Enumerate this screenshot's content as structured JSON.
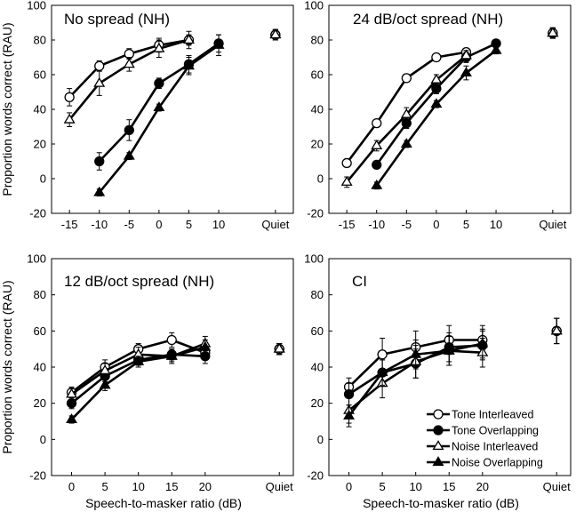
{
  "legend": [
    {
      "label": "Tone Interleaved",
      "marker": "circle",
      "fill": "open"
    },
    {
      "label": "Tone Overlapping",
      "marker": "circle",
      "fill": "filled"
    },
    {
      "label": "Noise Interleaved",
      "marker": "triangle",
      "fill": "open"
    },
    {
      "label": "Noise Overlapping",
      "marker": "triangle",
      "fill": "filled"
    }
  ],
  "chart_data": [
    {
      "type": "line",
      "title": "No spread (NH)",
      "xlabel": "",
      "ylabel": "Proportion words correct (RAU)",
      "ylim": [
        -20,
        100
      ],
      "yticks": [
        -20,
        0,
        20,
        40,
        60,
        80,
        100
      ],
      "xticks": [
        "-15",
        "-10",
        "-5",
        "0",
        "5",
        "10",
        "Quiet"
      ],
      "x": [
        -15,
        -10,
        -5,
        0,
        5,
        10
      ],
      "series": [
        {
          "name": "Tone Interleaved",
          "values": [
            47,
            65,
            72,
            77,
            80,
            null
          ],
          "err": [
            5,
            3,
            3,
            4,
            3,
            0
          ],
          "quiet": 83,
          "quiet_err": 3
        },
        {
          "name": "Tone Overlapping",
          "values": [
            null,
            10,
            28,
            55,
            66,
            78
          ],
          "err": [
            0,
            5,
            6,
            3,
            5,
            5
          ],
          "quiet": 83,
          "quiet_err": 3
        },
        {
          "name": "Noise Interleaved",
          "values": [
            34,
            55,
            66,
            75,
            80,
            null
          ],
          "err": [
            4,
            7,
            4,
            5,
            5,
            0
          ],
          "quiet": 83,
          "quiet_err": 3
        },
        {
          "name": "Noise Overlapping",
          "values": [
            null,
            -8,
            13,
            41,
            65,
            77
          ],
          "err": [
            0,
            2,
            2,
            2,
            5,
            6
          ],
          "quiet": 83,
          "quiet_err": 3
        }
      ]
    },
    {
      "type": "line",
      "title": "24 dB/oct spread (NH)",
      "xlabel": "",
      "ylabel": "",
      "ylim": [
        -20,
        100
      ],
      "yticks": [
        -20,
        0,
        20,
        40,
        60,
        80,
        100
      ],
      "xticks": [
        "-15",
        "-10",
        "-5",
        "0",
        "5",
        "10",
        "Quiet"
      ],
      "x": [
        -15,
        -10,
        -5,
        0,
        5,
        10
      ],
      "series": [
        {
          "name": "Tone Interleaved",
          "values": [
            9,
            32,
            58,
            70,
            73,
            null
          ],
          "err": [
            2,
            2,
            2,
            2,
            2,
            0
          ],
          "quiet": 84,
          "quiet_err": 3
        },
        {
          "name": "Tone Overlapping",
          "values": [
            null,
            8,
            32,
            52,
            70,
            78
          ],
          "err": [
            0,
            2,
            3,
            3,
            3,
            2
          ],
          "quiet": 84,
          "quiet_err": 3
        },
        {
          "name": "Noise Interleaved",
          "values": [
            -2,
            19,
            37,
            57,
            71,
            null
          ],
          "err": [
            3,
            3,
            4,
            3,
            3,
            0
          ],
          "quiet": 84,
          "quiet_err": 3
        },
        {
          "name": "Noise Overlapping",
          "values": [
            null,
            -4,
            20,
            43,
            61,
            74
          ],
          "err": [
            0,
            2,
            2,
            2,
            4,
            2
          ],
          "quiet": 84,
          "quiet_err": 3
        }
      ]
    },
    {
      "type": "line",
      "title": "12 dB/oct spread (NH)",
      "xlabel": "Speech-to-masker ratio (dB)",
      "ylabel": "Proportion words correct (RAU)",
      "ylim": [
        -20,
        100
      ],
      "yticks": [
        -20,
        0,
        20,
        40,
        60,
        80,
        100
      ],
      "xticks": [
        "0",
        "5",
        "10",
        "15",
        "20",
        "Quiet"
      ],
      "x": [
        0,
        5,
        10,
        15,
        20
      ],
      "series": [
        {
          "name": "Tone Interleaved",
          "values": [
            26,
            40,
            50,
            55,
            48
          ],
          "err": [
            3,
            4,
            3,
            4,
            4
          ],
          "quiet": 50,
          "quiet_err": 3
        },
        {
          "name": "Tone Overlapping",
          "values": [
            20,
            35,
            44,
            47,
            46
          ],
          "err": [
            3,
            3,
            3,
            3,
            4
          ],
          "quiet": 50,
          "quiet_err": 3
        },
        {
          "name": "Noise Interleaved",
          "values": [
            25,
            38,
            47,
            46,
            53
          ],
          "err": [
            3,
            4,
            4,
            4,
            4
          ],
          "quiet": 50,
          "quiet_err": 3
        },
        {
          "name": "Noise Overlapping",
          "values": [
            11,
            30,
            43,
            46,
            51
          ],
          "err": [
            2,
            3,
            3,
            3,
            4
          ],
          "quiet": 50,
          "quiet_err": 3
        }
      ]
    },
    {
      "type": "line",
      "title": "CI",
      "xlabel": "Speech-to-masker ratio (dB)",
      "ylabel": "",
      "ylim": [
        -20,
        100
      ],
      "yticks": [
        -20,
        0,
        20,
        40,
        60,
        80,
        100
      ],
      "xticks": [
        "0",
        "5",
        "10",
        "15",
        "20",
        "Quiet"
      ],
      "x": [
        0,
        5,
        10,
        15,
        20
      ],
      "series": [
        {
          "name": "Tone Interleaved",
          "values": [
            29,
            47,
            51,
            55,
            55
          ],
          "err": [
            5,
            9,
            9,
            8,
            8
          ],
          "quiet": 60,
          "quiet_err": 7
        },
        {
          "name": "Tone Overlapping",
          "values": [
            25,
            37,
            42,
            51,
            52
          ],
          "err": [
            6,
            7,
            8,
            8,
            8
          ],
          "quiet": 60,
          "quiet_err": 7
        },
        {
          "name": "Noise Interleaved",
          "values": [
            16,
            31,
            43,
            49,
            48
          ],
          "err": [
            7,
            8,
            9,
            8,
            8
          ],
          "quiet": 60,
          "quiet_err": 7
        },
        {
          "name": "Noise Overlapping",
          "values": [
            13,
            37,
            47,
            49,
            53
          ],
          "err": [
            6,
            7,
            8,
            8,
            8
          ],
          "quiet": 60,
          "quiet_err": 7
        }
      ]
    }
  ]
}
